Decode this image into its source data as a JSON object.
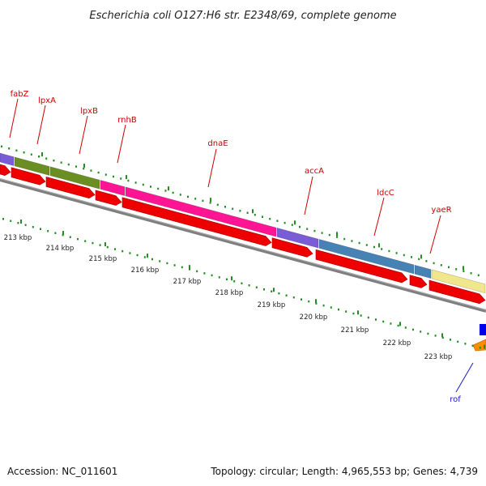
{
  "title": "Escherichia coli O127:H6 str. E2348/69, complete genome",
  "footer": {
    "accession": "Accession: NC_011601",
    "summary": "Topology: circular; Length: 4,965,553 bp; Genes: 4,739"
  },
  "colors": {
    "arrow_red": "#ee0000",
    "olive": "#6b8e23",
    "pink": "#ff1493",
    "purple": "#7a5cd6",
    "steel": "#4682b4",
    "khaki": "#f0e68c",
    "backbone": "#7f7f7f",
    "tick": "#228b22",
    "blue": "#0000ee",
    "orange": "#ff8c00"
  },
  "gene_labels": [
    "fabZ",
    "lpxA",
    "lpxB",
    "rnhB",
    "dnaE",
    "accA",
    "ldcC",
    "yaeR",
    "rof"
  ],
  "kbp_labels": [
    "213 kbp",
    "214 kbp",
    "215 kbp",
    "216 kbp",
    "217 kbp",
    "218 kbp",
    "219 kbp",
    "220 kbp",
    "221 kbp",
    "222 kbp",
    "223 kbp"
  ]
}
